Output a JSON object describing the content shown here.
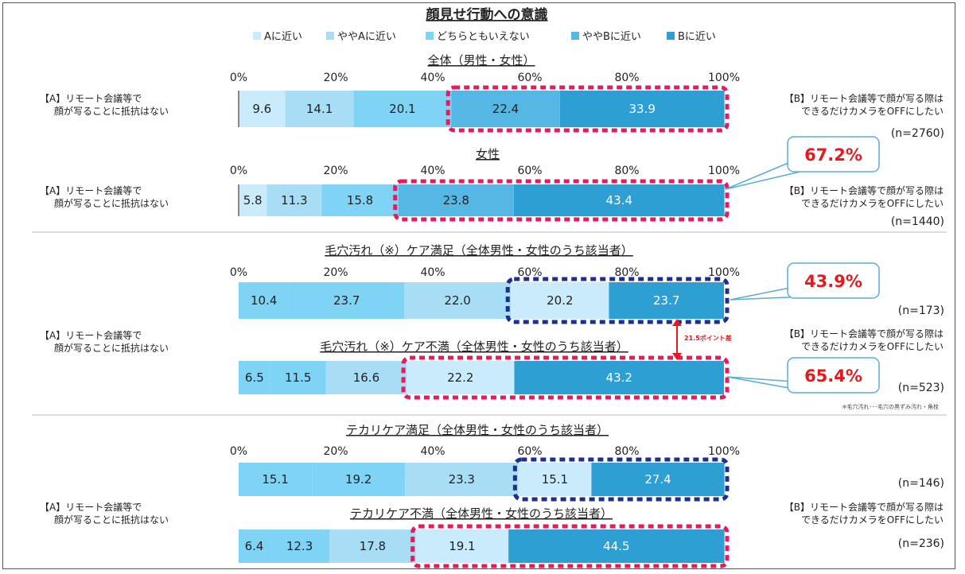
{
  "title": "顔見せ行動への意識",
  "legend": [
    "Aに近い",
    "ややAに近い",
    "どちらともいえない",
    "ややBに近い",
    "Bに近い"
  ],
  "colors": [
    "#c9ebfb",
    "#a7def6",
    "#7fd3f5",
    "#55b8e4",
    "#2e9fd3"
  ],
  "axis_ticks": [
    "0%",
    "20%",
    "40%",
    "60%",
    "80%",
    "100%"
  ],
  "label_a": [
    "【A】リモート会議等で",
    "顔が写ることに抵抗はない"
  ],
  "label_b": [
    "【B】リモート会議等で顔が写る際は",
    "できるだけカメラをOFFにしたい"
  ],
  "callouts": [
    "67.2%",
    "43.9%",
    "65.4%"
  ],
  "difference_label": "21.5ポイント差",
  "footnote": "※毛穴汚れ･･･毛穴の黒ずみ汚れ・角栓",
  "chart_data": {
    "type": "bar",
    "orientation": "horizontal-stacked",
    "xlim": [
      0,
      100
    ],
    "series_names": [
      "Aに近い",
      "ややAに近い",
      "どちらともいえない",
      "ややBに近い",
      "Bに近い"
    ],
    "groups": [
      {
        "name": "全体（男性・女性）",
        "n": "(n=2760)",
        "values": [
          9.6,
          14.1,
          20.1,
          22.4,
          33.9
        ],
        "color_order": [
          0,
          1,
          2,
          3,
          4
        ]
      },
      {
        "name": "女性",
        "n": "(n=1440)",
        "values": [
          5.8,
          11.3,
          15.8,
          23.8,
          43.4
        ],
        "color_order": [
          0,
          1,
          2,
          3,
          4
        ]
      },
      {
        "name": "毛穴汚れ（※）ケア満足（全体男性・女性のうち該当者）",
        "n": "(n=173)",
        "values": [
          10.4,
          23.7,
          22.0,
          20.2,
          23.7
        ],
        "color_order": [
          2,
          2,
          1,
          0,
          4
        ]
      },
      {
        "name": "毛穴汚れ（※）ケア不満（全体男性・女性のうち該当者）",
        "n": "(n=523)",
        "values": [
          6.5,
          11.5,
          16.6,
          22.2,
          43.2
        ],
        "color_order": [
          2,
          2,
          1,
          0,
          4
        ]
      },
      {
        "name": "テカリケア満足（全体男性・女性のうち該当者）",
        "n": "(n=146)",
        "values": [
          15.1,
          19.2,
          23.3,
          15.1,
          27.4
        ],
        "color_order": [
          2,
          2,
          1,
          0,
          4
        ]
      },
      {
        "name": "テカリケア不満（全体男性・女性のうち該当者）",
        "n": "(n=236)",
        "values": [
          6.4,
          12.3,
          17.8,
          19.1,
          44.5
        ],
        "color_order": [
          2,
          2,
          1,
          0,
          4
        ]
      }
    ]
  }
}
